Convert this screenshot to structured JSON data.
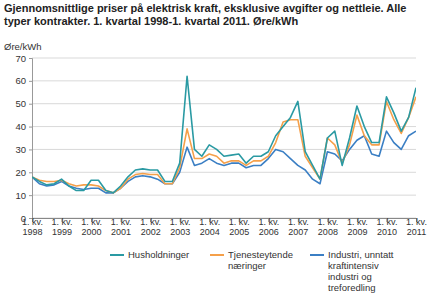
{
  "chart_data": {
    "type": "line",
    "title": "Gjennomsnittlige priser på elektrisk kraft, eksklusive avgifter og nettleie. Alle typer kontrakter. 1. kvartal 1998-1. kvartal 2011. Øre/kWh",
    "y_label": "Øre/kWh",
    "categories": [
      "1. kv. 1998",
      null,
      null,
      null,
      "1. kv. 1999",
      null,
      null,
      null,
      "1. kv. 2000",
      null,
      null,
      null,
      "1. kv. 2001",
      null,
      null,
      null,
      "1. kv. 2002",
      null,
      null,
      null,
      "1. kv. 2003",
      null,
      null,
      null,
      "1. kv. 2004",
      null,
      null,
      null,
      "1. kv. 2005",
      null,
      null,
      null,
      "1. kv. 2006",
      null,
      null,
      null,
      "1. kv. 2007",
      null,
      null,
      null,
      "1. kv. 2008",
      null,
      null,
      null,
      "1. kv. 2009",
      null,
      null,
      null,
      "1. kv. 2010",
      null,
      null,
      null,
      "1. kv. 2011"
    ],
    "series": [
      {
        "name": "Husholdninger",
        "color": "#2a9aa3",
        "values": [
          18,
          16,
          14.5,
          15,
          17,
          14,
          12,
          12,
          16.5,
          16.5,
          12,
          11,
          14,
          18,
          21,
          21.5,
          21,
          21,
          16,
          16,
          24,
          62,
          30,
          27,
          32,
          30,
          27,
          27.5,
          28,
          24,
          27,
          27,
          29,
          36,
          40,
          44,
          51,
          29,
          23,
          17,
          35,
          38,
          23,
          35,
          49,
          40,
          33,
          33,
          53,
          46,
          38,
          44,
          57
        ]
      },
      {
        "name": "Tjenesteytende næringer",
        "color": "#f5a04a",
        "values": [
          18,
          16.5,
          16,
          16,
          16.5,
          15,
          14,
          14.5,
          14.5,
          14,
          12,
          11,
          13,
          17,
          19,
          19.5,
          19,
          19,
          15,
          15,
          22,
          39,
          26,
          26,
          28,
          27,
          24,
          25,
          25,
          23,
          25,
          25,
          27,
          33,
          42,
          43,
          43,
          27,
          22,
          17,
          35,
          32,
          24,
          32,
          45,
          36,
          32,
          32,
          51,
          43,
          37,
          44,
          53
        ]
      },
      {
        "name": "Industri, unntatt kraftintensiv industri og treforedling",
        "color": "#3b7fc4",
        "values": [
          18,
          15,
          14,
          14.5,
          16,
          14,
          13,
          12.5,
          13,
          13,
          11,
          11,
          13,
          16,
          18,
          18.5,
          18,
          17,
          15,
          15,
          20,
          31,
          23,
          24,
          26,
          24,
          23,
          24,
          24,
          22,
          23,
          23,
          26,
          30,
          29,
          26,
          23,
          21,
          17,
          15,
          29,
          28,
          25,
          30,
          34,
          36,
          28,
          27,
          38,
          33,
          30,
          36,
          38
        ]
      }
    ],
    "ylim": [
      0,
      70
    ],
    "yticks": [
      0,
      10,
      20,
      30,
      40,
      50,
      60,
      70
    ],
    "grid": true,
    "legend": "bottom"
  }
}
